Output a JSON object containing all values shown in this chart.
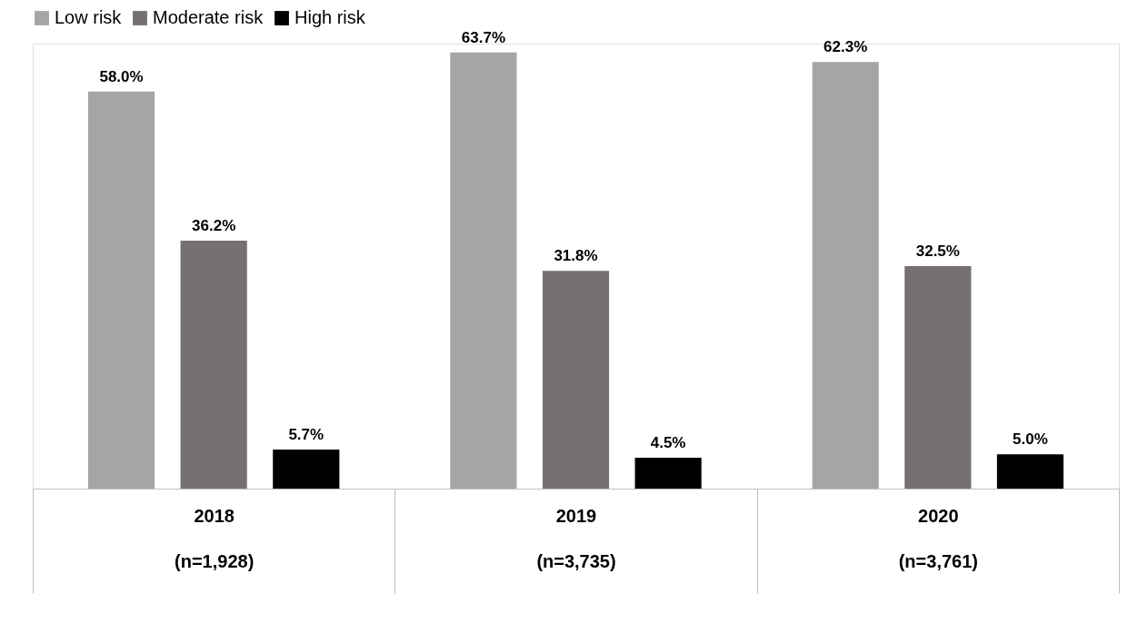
{
  "chart_data": {
    "type": "bar",
    "categories": [
      "2018\n(n=1,928)",
      "2019\n(n=3,735)",
      "2020\n(n=3,761)"
    ],
    "series": [
      {
        "name": "Low risk",
        "color": "#a5a5a5",
        "values": [
          58.0,
          63.7,
          62.3
        ],
        "value_labels": [
          "58.0%",
          "63.7%",
          "62.3%"
        ]
      },
      {
        "name": "Moderate risk",
        "color": "#767171",
        "values": [
          36.2,
          31.8,
          32.5
        ],
        "value_labels": [
          "36.2%",
          "31.8%",
          "32.5%"
        ]
      },
      {
        "name": "High risk",
        "color": "#000000",
        "values": [
          5.7,
          4.5,
          5.0
        ],
        "value_labels": [
          "5.7%",
          "4.5%",
          "5.0%"
        ]
      }
    ],
    "legend": "top",
    "grid": false
  }
}
